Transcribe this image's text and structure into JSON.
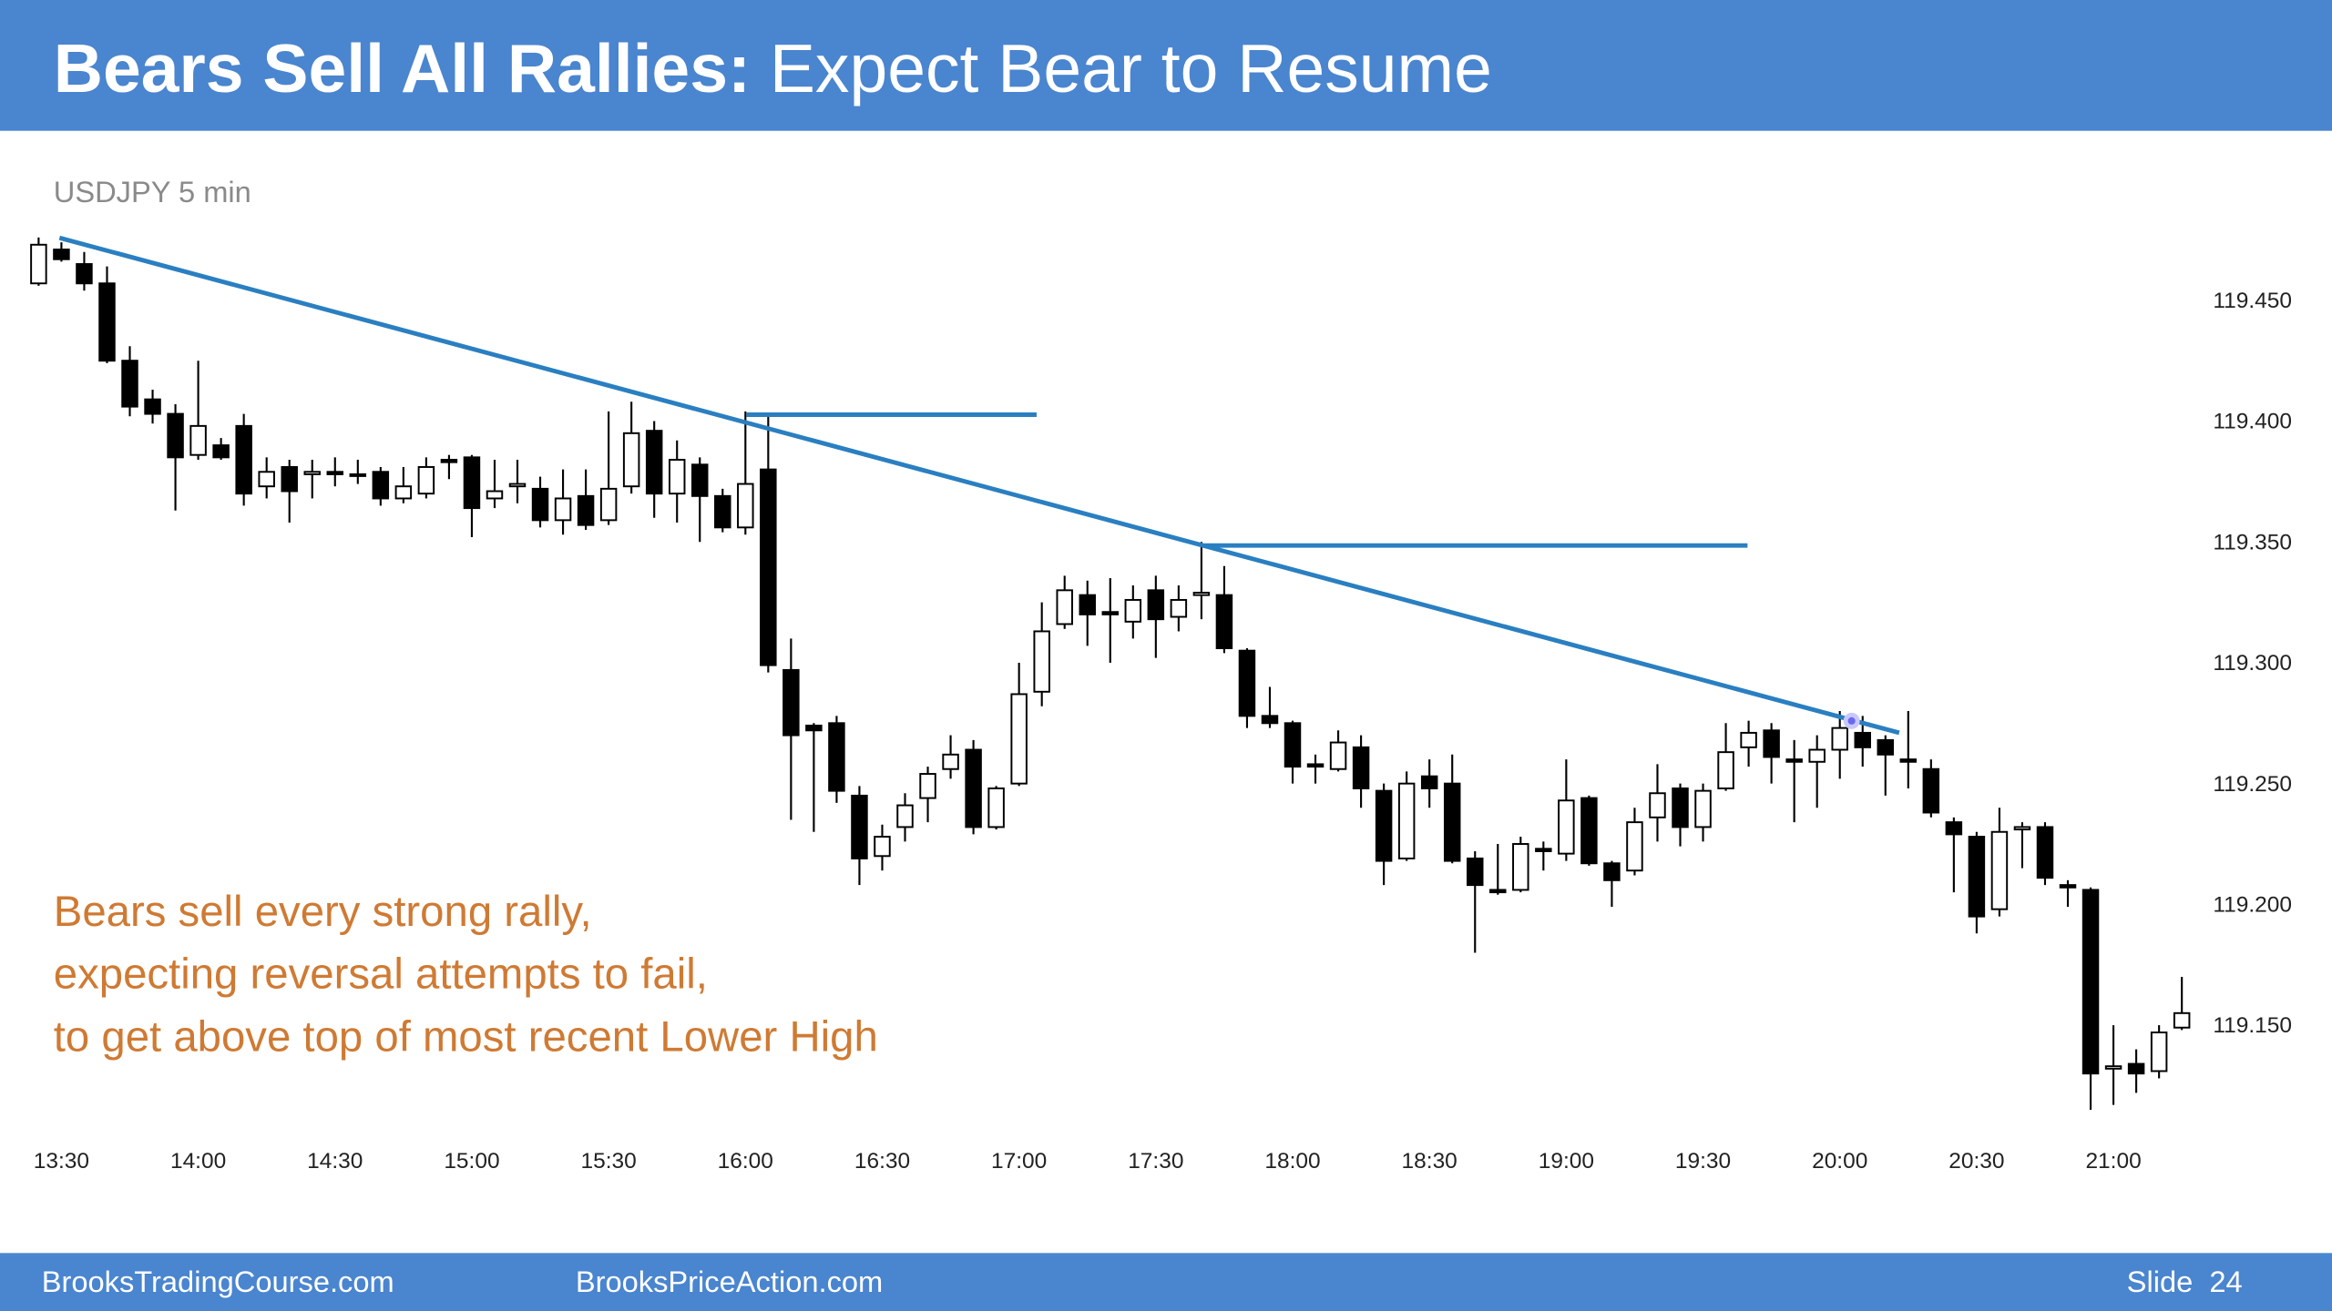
{
  "header": {
    "title_bold": "Bears Sell All Rallies:",
    "title_rest": " Expect Bear to Resume"
  },
  "footer": {
    "left": "BrooksTradingCourse.com",
    "center": "BrooksPriceAction.com",
    "right": "Slide  24"
  },
  "chart_data": {
    "type": "candlestick",
    "subtitle": "USDJPY 5 min",
    "annotation": [
      "Bears sell every strong rally,",
      "expecting reversal attempts to fail,",
      "to get above top of most recent Lower High"
    ],
    "categories": [
      null,
      "13:30",
      null,
      null,
      null,
      null,
      null,
      "14:00",
      null,
      null,
      null,
      null,
      null,
      "14:30",
      null,
      null,
      null,
      null,
      null,
      "15:00",
      null,
      null,
      null,
      null,
      null,
      "15:30",
      null,
      null,
      null,
      null,
      null,
      "16:00",
      null,
      null,
      null,
      null,
      null,
      "16:30",
      null,
      null,
      null,
      null,
      null,
      "17:00",
      null,
      null,
      null,
      null,
      null,
      "17:30",
      null,
      null,
      null,
      null,
      null,
      "18:00",
      null,
      null,
      null,
      null,
      null,
      "18:30",
      null,
      null,
      null,
      null,
      null,
      "19:00",
      null,
      null,
      null,
      null,
      null,
      "19:30",
      null,
      null,
      null,
      null,
      null,
      "20:00",
      null,
      null,
      null,
      null,
      null,
      "20:30",
      null,
      null,
      null,
      null,
      null,
      "21:00",
      null,
      null,
      null
    ],
    "open": [
      119.457,
      119.471,
      119.465,
      119.457,
      119.425,
      119.409,
      119.403,
      119.386,
      119.39,
      119.398,
      119.373,
      119.381,
      119.378,
      119.379,
      119.378,
      119.379,
      119.368,
      119.37,
      119.384,
      119.385,
      119.368,
      119.373,
      119.372,
      119.359,
      119.369,
      119.359,
      119.373,
      119.396,
      119.37,
      119.382,
      119.369,
      119.356,
      119.38,
      119.297,
      119.274,
      119.275,
      119.245,
      119.22,
      119.232,
      119.244,
      119.256,
      119.264,
      119.232,
      119.25,
      119.288,
      119.316,
      119.328,
      119.321,
      119.317,
      119.33,
      119.319,
      119.328,
      119.328,
      119.305,
      119.278,
      119.275,
      119.258,
      119.256,
      119.265,
      119.247,
      119.219,
      119.253,
      119.25,
      119.219,
      119.206,
      119.206,
      119.223,
      119.221,
      119.244,
      119.217,
      119.214,
      119.236,
      119.248,
      119.232,
      119.248,
      119.265,
      119.272,
      119.26,
      119.259,
      119.264,
      119.271,
      119.268,
      119.26,
      119.256,
      119.234,
      119.228,
      119.198,
      119.231,
      119.232,
      119.208,
      119.206,
      119.132,
      119.134,
      119.131,
      119.149
    ],
    "high": [
      119.476,
      119.474,
      119.47,
      119.464,
      119.431,
      119.413,
      119.407,
      119.425,
      119.393,
      119.403,
      119.385,
      119.384,
      119.384,
      119.385,
      119.384,
      119.381,
      119.381,
      119.385,
      119.386,
      119.386,
      119.384,
      119.384,
      119.377,
      119.38,
      119.38,
      119.404,
      119.408,
      119.4,
      119.392,
      119.385,
      119.372,
      119.404,
      119.403,
      119.31,
      119.275,
      119.278,
      119.249,
      119.233,
      119.246,
      119.257,
      119.27,
      119.268,
      119.249,
      119.3,
      119.325,
      119.336,
      119.334,
      119.335,
      119.332,
      119.336,
      119.332,
      119.35,
      119.34,
      119.306,
      119.29,
      119.276,
      119.262,
      119.272,
      119.27,
      119.25,
      119.255,
      119.26,
      119.262,
      119.222,
      119.225,
      119.228,
      119.226,
      119.26,
      119.245,
      119.218,
      119.24,
      119.258,
      119.25,
      119.25,
      119.275,
      119.276,
      119.275,
      119.268,
      119.27,
      119.28,
      119.278,
      119.27,
      119.28,
      119.26,
      119.236,
      119.23,
      119.24,
      119.234,
      119.234,
      119.21,
      119.207,
      119.15,
      119.14,
      119.15,
      119.17
    ],
    "low": [
      119.456,
      119.466,
      119.454,
      119.424,
      119.402,
      119.399,
      119.363,
      119.384,
      119.384,
      119.365,
      119.368,
      119.358,
      119.368,
      119.373,
      119.374,
      119.365,
      119.366,
      119.368,
      119.376,
      119.352,
      119.364,
      119.366,
      119.356,
      119.353,
      119.355,
      119.357,
      119.37,
      119.36,
      119.358,
      119.35,
      119.354,
      119.353,
      119.296,
      119.235,
      119.23,
      119.242,
      119.208,
      119.214,
      119.226,
      119.234,
      119.252,
      119.229,
      119.231,
      119.249,
      119.282,
      119.314,
      119.307,
      119.3,
      119.31,
      119.302,
      119.313,
      119.318,
      119.304,
      119.273,
      119.273,
      119.25,
      119.25,
      119.255,
      119.24,
      119.208,
      119.218,
      119.24,
      119.217,
      119.18,
      119.204,
      119.205,
      119.214,
      119.218,
      119.216,
      119.199,
      119.212,
      119.226,
      119.224,
      119.226,
      119.247,
      119.257,
      119.25,
      119.234,
      119.24,
      119.252,
      119.257,
      119.245,
      119.248,
      119.236,
      119.205,
      119.188,
      119.195,
      119.215,
      119.208,
      119.199,
      119.115,
      119.117,
      119.122,
      119.128,
      119.148
    ],
    "close": [
      119.473,
      119.467,
      119.457,
      119.425,
      119.406,
      119.403,
      119.385,
      119.398,
      119.385,
      119.37,
      119.379,
      119.371,
      119.379,
      119.378,
      119.378,
      119.368,
      119.373,
      119.381,
      119.383,
      119.364,
      119.371,
      119.374,
      119.359,
      119.368,
      119.357,
      119.372,
      119.395,
      119.37,
      119.384,
      119.369,
      119.356,
      119.374,
      119.299,
      119.27,
      119.272,
      119.247,
      119.219,
      119.228,
      119.241,
      119.254,
      119.262,
      119.232,
      119.248,
      119.287,
      119.313,
      119.33,
      119.32,
      119.32,
      119.326,
      119.318,
      119.326,
      119.329,
      119.306,
      119.278,
      119.275,
      119.257,
      119.257,
      119.267,
      119.248,
      119.218,
      119.25,
      119.248,
      119.218,
      119.208,
      119.205,
      119.225,
      119.222,
      119.243,
      119.217,
      119.21,
      119.234,
      119.246,
      119.232,
      119.247,
      119.263,
      119.271,
      119.261,
      119.259,
      119.264,
      119.273,
      119.265,
      119.262,
      119.259,
      119.238,
      119.229,
      119.195,
      119.23,
      119.232,
      119.211,
      119.207,
      119.13,
      119.133,
      119.13,
      119.147,
      119.155
    ],
    "up_color": "#ffffff",
    "down_color": "#000000",
    "ylim": [
      119.1,
      119.49
    ],
    "yticks": [
      {
        "value": 119.45,
        "label": "119.450"
      },
      {
        "value": 119.4,
        "label": "119.400"
      },
      {
        "value": 119.35,
        "label": "119.350"
      },
      {
        "value": 119.3,
        "label": "119.300"
      },
      {
        "value": 119.25,
        "label": "119.250"
      },
      {
        "value": 119.2,
        "label": "119.200"
      },
      {
        "value": 119.15,
        "label": "119.150"
      }
    ],
    "grid": false
  }
}
